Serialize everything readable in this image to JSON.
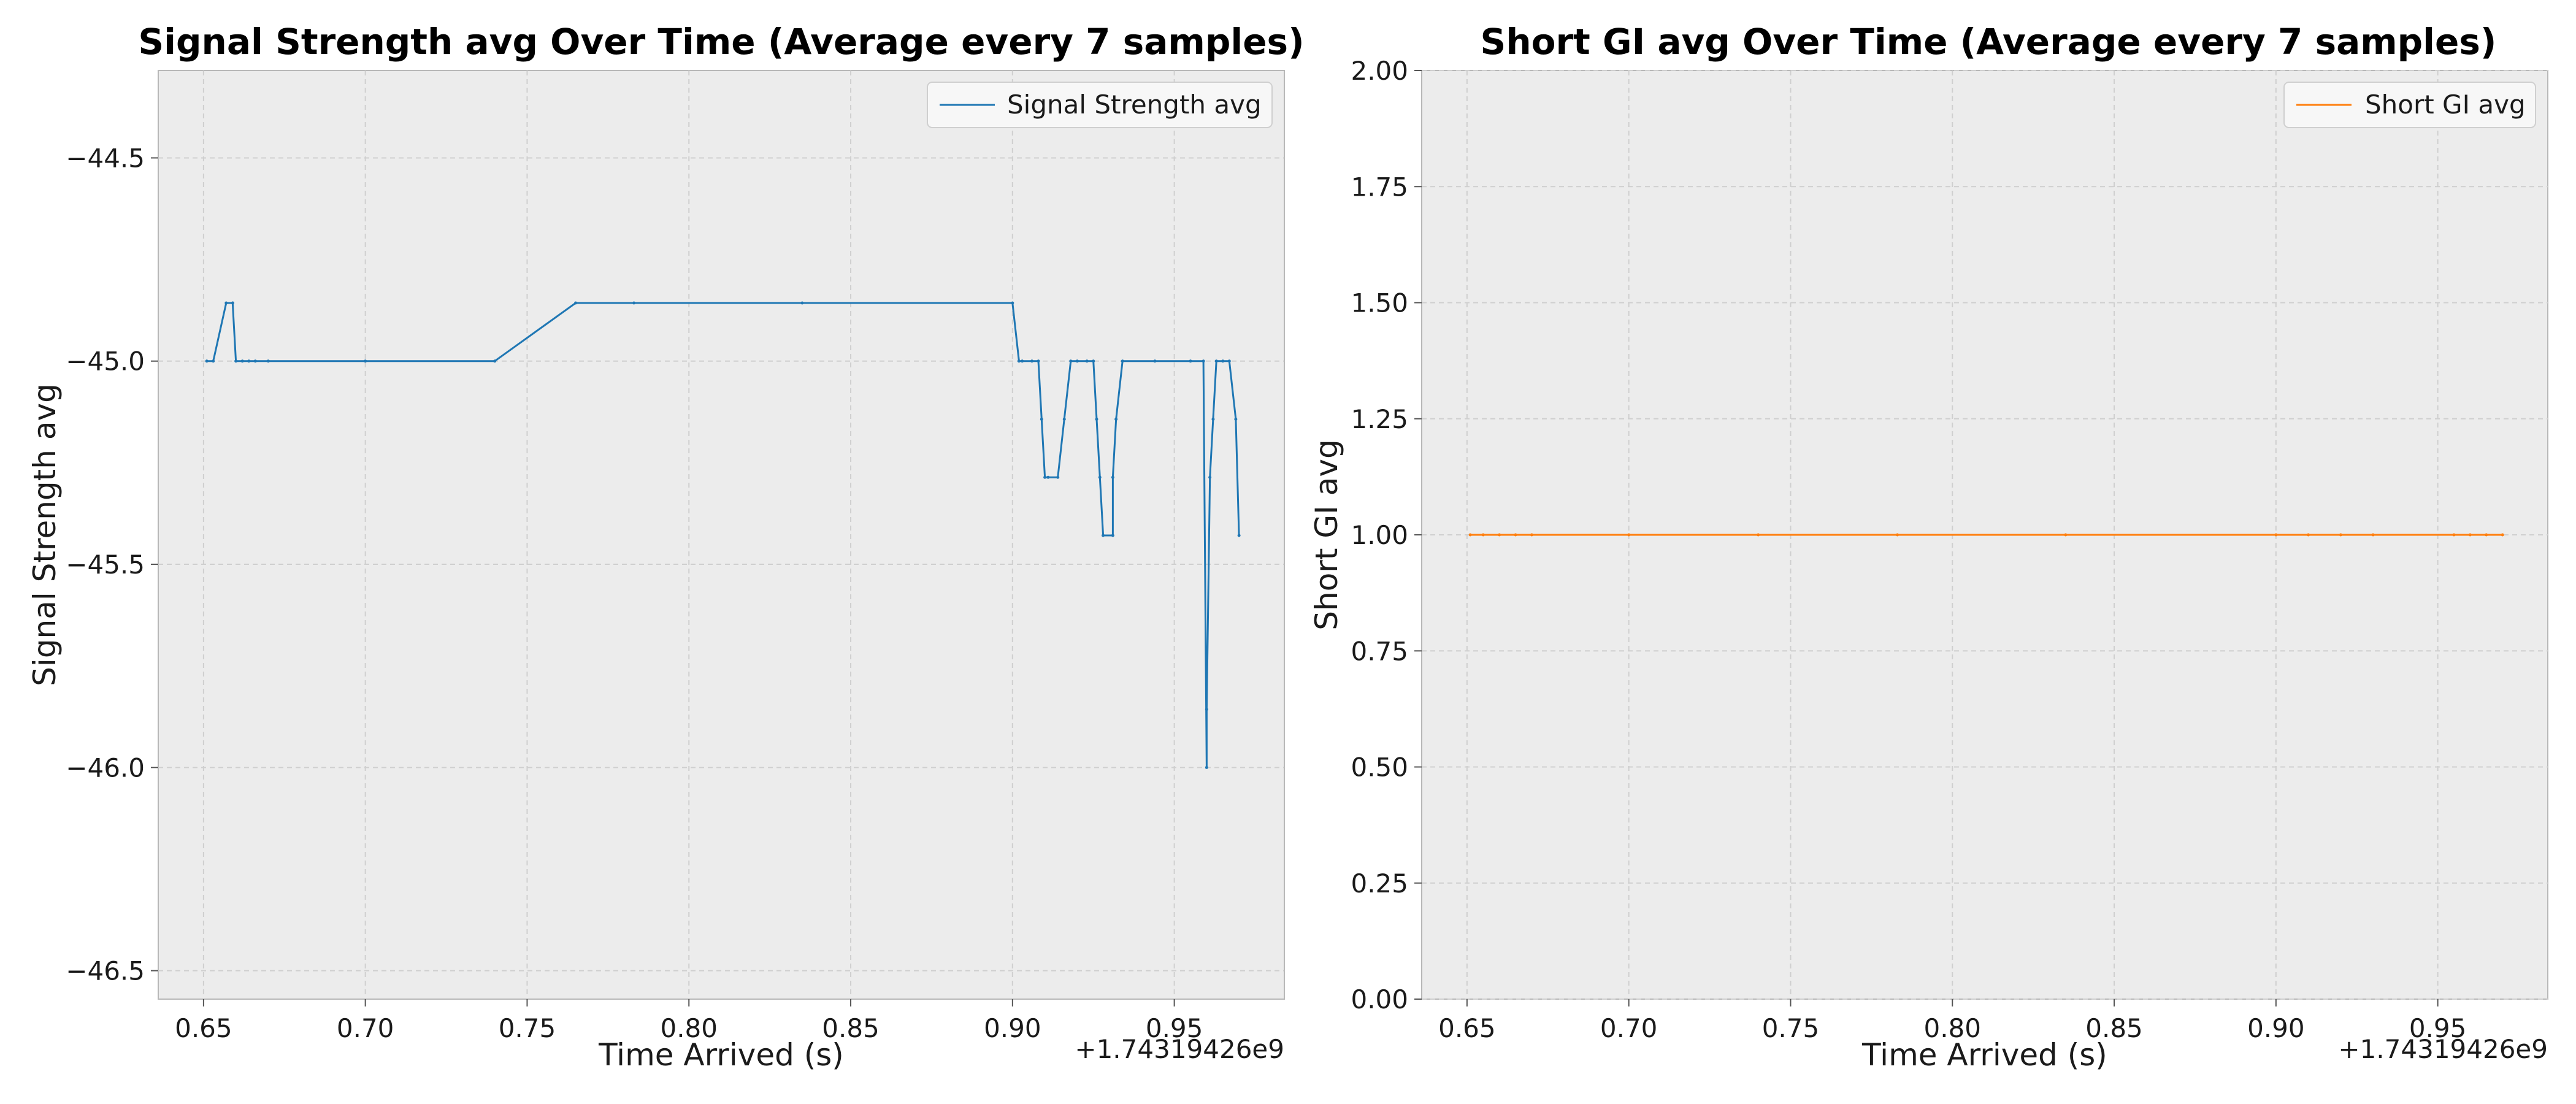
{
  "chart_data": [
    {
      "type": "line",
      "title": "Signal Strength avg Over Time (Average every 7 samples)",
      "xlabel": "Time Arrived (s)",
      "ylabel": "Signal Strength avg",
      "x_offset_label": "+1.74319426e9",
      "xlim": [
        0.636,
        0.984
      ],
      "ylim": [
        -46.57,
        -44.285
      ],
      "x_ticks": [
        0.65,
        0.7,
        0.75,
        0.8,
        0.85,
        0.9,
        0.95
      ],
      "x_tick_labels": [
        "0.65",
        "0.70",
        "0.75",
        "0.80",
        "0.85",
        "0.90",
        "0.95"
      ],
      "y_ticks": [
        -46.5,
        -46.0,
        -45.5,
        -45.0,
        -44.5
      ],
      "y_tick_labels": [
        "−46.5",
        "−46.0",
        "−45.5",
        "−45.0",
        "−44.5"
      ],
      "grid": true,
      "legend_position": "top-right",
      "series": [
        {
          "name": "Signal Strength avg",
          "color": "#1f77b4",
          "x": [
            0.651,
            0.653,
            0.657,
            0.659,
            0.659,
            0.66,
            0.662,
            0.664,
            0.666,
            0.67,
            0.7,
            0.74,
            0.765,
            0.783,
            0.835,
            0.9,
            0.902,
            0.903,
            0.906,
            0.908,
            0.909,
            0.91,
            0.911,
            0.914,
            0.916,
            0.918,
            0.92,
            0.923,
            0.925,
            0.926,
            0.927,
            0.928,
            0.931,
            0.931,
            0.932,
            0.934,
            0.944,
            0.955,
            0.959,
            0.96,
            0.96,
            0.961,
            0.962,
            0.963,
            0.965,
            0.967,
            0.969,
            0.97
          ],
          "y": [
            -45.0,
            -45.0,
            -44.857,
            -44.857,
            -44.857,
            -45.0,
            -45.0,
            -45.0,
            -45.0,
            -45.0,
            -45.0,
            -45.0,
            -44.857,
            -44.857,
            -44.857,
            -44.857,
            -45.0,
            -45.0,
            -45.0,
            -45.0,
            -45.143,
            -45.286,
            -45.286,
            -45.286,
            -45.143,
            -45.0,
            -45.0,
            -45.0,
            -45.0,
            -45.143,
            -45.286,
            -45.429,
            -45.429,
            -45.286,
            -45.143,
            -45.0,
            -45.0,
            -45.0,
            -45.0,
            -46.0,
            -45.857,
            -45.286,
            -45.143,
            -45.0,
            -45.0,
            -45.0,
            -45.143,
            -45.429
          ]
        }
      ]
    },
    {
      "type": "line",
      "title": "Short GI avg Over Time (Average every 7 samples)",
      "xlabel": "Time Arrived (s)",
      "ylabel": "Short GI avg",
      "x_offset_label": "+1.74319426e9",
      "xlim": [
        0.636,
        0.984
      ],
      "ylim": [
        0.0,
        2.0
      ],
      "x_ticks": [
        0.65,
        0.7,
        0.75,
        0.8,
        0.85,
        0.9,
        0.95
      ],
      "x_tick_labels": [
        "0.65",
        "0.70",
        "0.75",
        "0.80",
        "0.85",
        "0.90",
        "0.95"
      ],
      "y_ticks": [
        0.0,
        0.25,
        0.5,
        0.75,
        1.0,
        1.25,
        1.5,
        1.75,
        2.0
      ],
      "y_tick_labels": [
        "0.00",
        "0.25",
        "0.50",
        "0.75",
        "1.00",
        "1.25",
        "1.50",
        "1.75",
        "2.00"
      ],
      "grid": true,
      "legend_position": "top-right",
      "series": [
        {
          "name": "Short GI avg",
          "color": "#ff7f0e",
          "x": [
            0.651,
            0.655,
            0.66,
            0.665,
            0.67,
            0.7,
            0.74,
            0.783,
            0.835,
            0.9,
            0.91,
            0.92,
            0.93,
            0.955,
            0.96,
            0.965,
            0.97
          ],
          "y": [
            1.0,
            1.0,
            1.0,
            1.0,
            1.0,
            1.0,
            1.0,
            1.0,
            1.0,
            1.0,
            1.0,
            1.0,
            1.0,
            1.0,
            1.0,
            1.0,
            1.0
          ]
        }
      ]
    }
  ]
}
